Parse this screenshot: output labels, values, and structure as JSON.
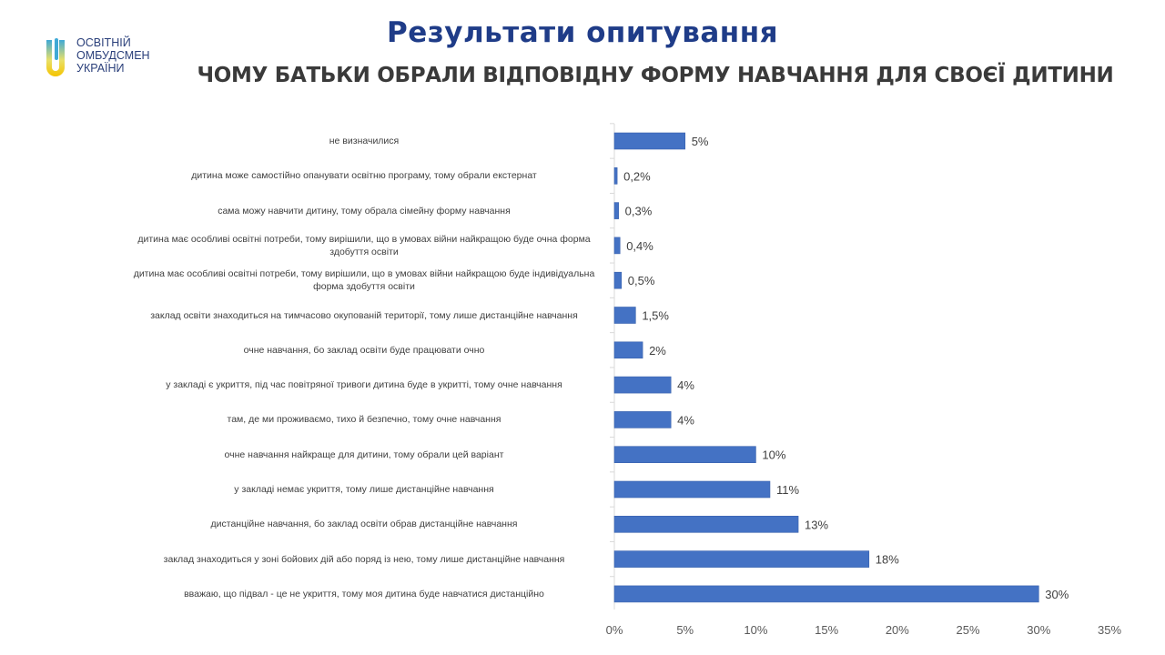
{
  "logo": {
    "lines": [
      "ОСВІТНІЙ",
      "ОМБУДСМЕН",
      "УКРАЇНИ"
    ]
  },
  "header": {
    "title": "Результати опитування",
    "subtitle": "ЧОМУ БАТЬКИ ОБРАЛИ ВІДПОВІДНУ ФОРМУ НАВЧАННЯ ДЛЯ СВОЄЇ ДИТИНИ"
  },
  "chart_data": {
    "type": "bar",
    "orientation": "horizontal",
    "title": "ЧОМУ БАТЬКИ ОБРАЛИ ВІДПОВІДНУ ФОРМУ НАВЧАННЯ ДЛЯ СВОЄЇ ДИТИНИ",
    "categories": [
      "не визначилися",
      "дитина може самостійно опанувати освітню програму, тому обрали екстернат",
      "сама можу навчити дитину, тому обрала сімейну форму навчання",
      "дитина має особливі освітні потреби, тому вирішили, що в умовах війни найкращою буде очна форма здобуття освіти",
      "дитина має особливі освітні потреби, тому вирішили, що в умовах війни найкращою буде індивідуальна форма здобуття освіти",
      "заклад освіти знаходиться на тимчасово окупованій території, тому лише дистанційне навчання",
      "очне навчання, бо заклад освіти буде працювати очно",
      "у закладі є укриття, під час повітряної тривоги дитина буде в укритті, тому очне навчання",
      "там, де ми проживаємо, тихо й безпечно, тому очне навчання",
      "очне навчання найкраще для дитини, тому обрали цей варіант",
      "у закладі немає укриття, тому лише дистанційне навчання",
      "дистанційне навчання, бо заклад освіти обрав дистанційне навчання",
      "заклад знаходиться у зоні бойових дій або поряд із нею, тому лише дистанційне навчання",
      "вважаю, що підвал - це не укриття, тому моя дитина буде навчатися дистанційно"
    ],
    "values": [
      5,
      0.2,
      0.3,
      0.4,
      0.5,
      1.5,
      2,
      4,
      4,
      10,
      11,
      13,
      18,
      30
    ],
    "data_labels": [
      "5%",
      "0,2%",
      "0,3%",
      "0,4%",
      "0,5%",
      "1,5%",
      "2%",
      "4%",
      "4%",
      "10%",
      "11%",
      "13%",
      "18%",
      "30%"
    ],
    "xlim": [
      0,
      35
    ],
    "xticks": [
      "0%",
      "5%",
      "10%",
      "15%",
      "20%",
      "25%",
      "30%",
      "35%"
    ],
    "grid": false,
    "bar_color": "#4472c4",
    "xlabel": "",
    "ylabel": ""
  }
}
